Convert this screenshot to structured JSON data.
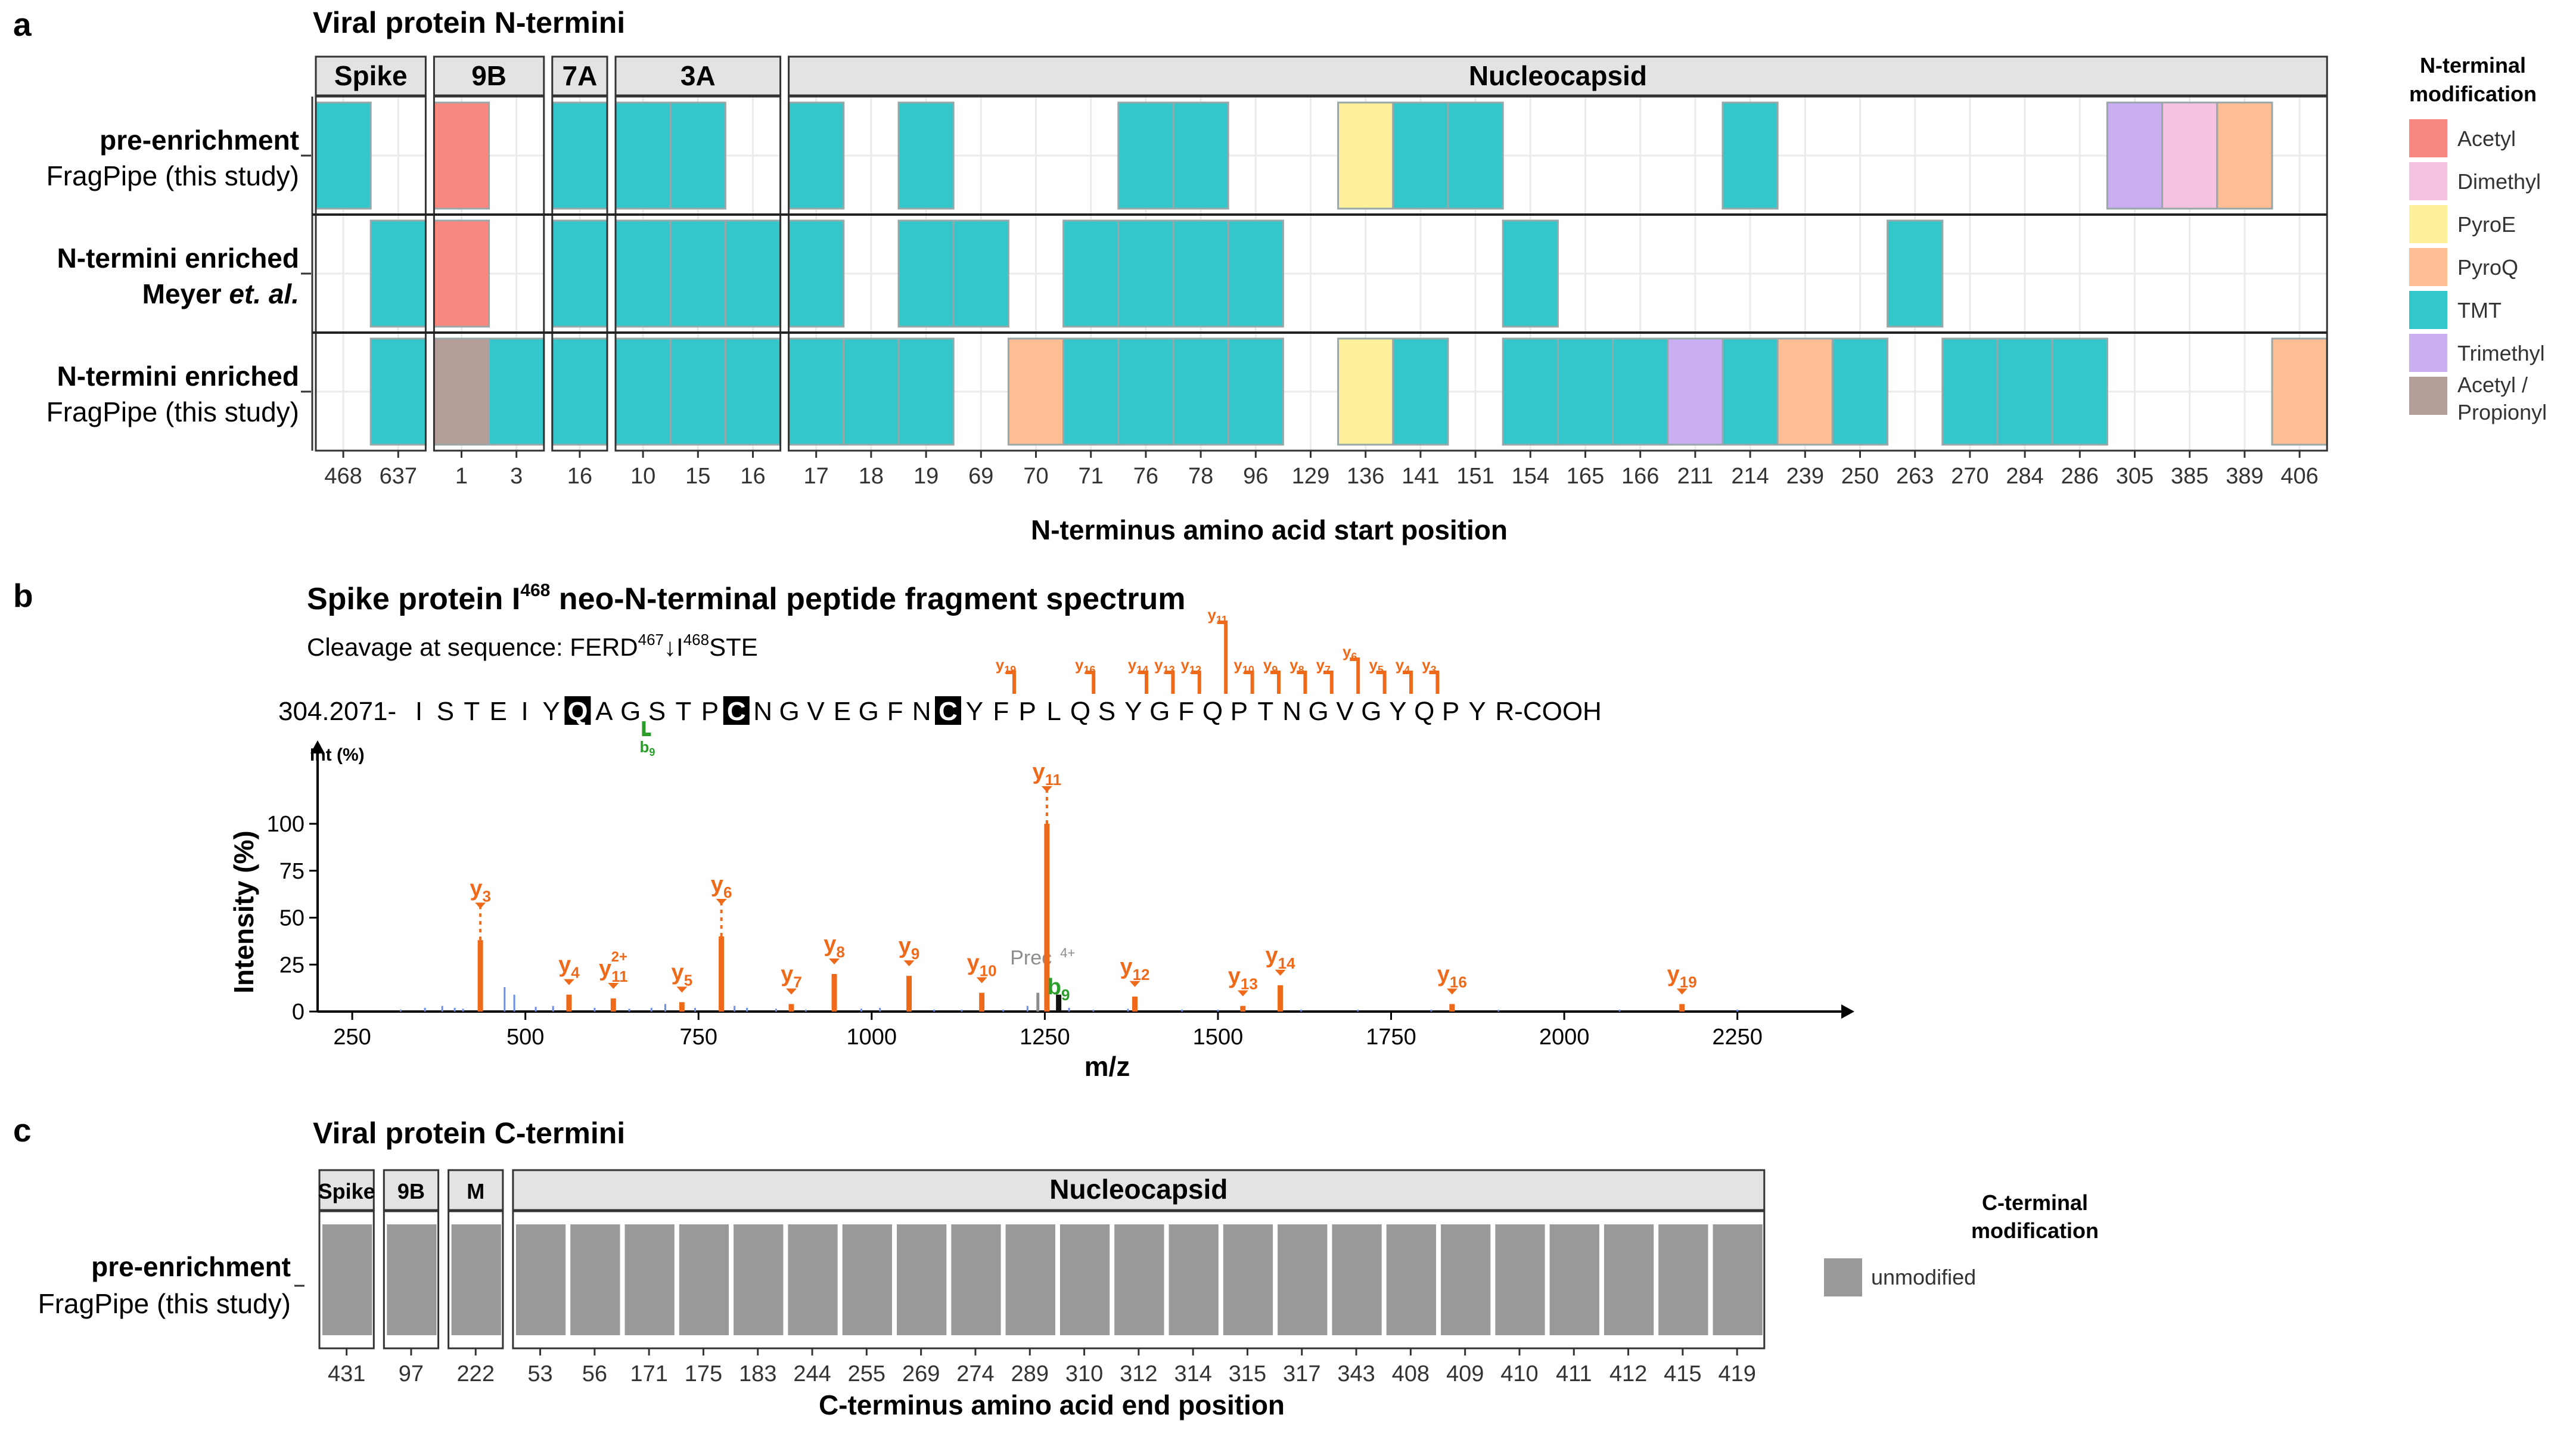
{
  "colors": {
    "Acetyl": "#F8877F",
    "Dimethyl": "#F5C3E2",
    "PyroE": "#FDF09A",
    "PyroQ": "#FDBE93",
    "TMT": "#33C7CC",
    "Trimethyl": "#C9AEF1",
    "Acetyl / Propionyl": "#B59E9A",
    "unmodified": "#999999",
    "y_ion": "#EE6A1A",
    "b_ion": "#2A9D2A",
    "noise": "#6B8FE6",
    "precursor": "#8C8C8C",
    "strip_fill": "#E3E3E3",
    "grid": "#EBEBEB"
  },
  "panel_labels": {
    "a": "a",
    "b": "b",
    "c": "c"
  },
  "chart_data": [
    {
      "type": "heatmap",
      "panel": "a",
      "title": "Viral protein N-termini",
      "xlabel": "N-terminus amino acid start position",
      "legend_title": "N-terminal modification",
      "legend": [
        "Acetyl",
        "Dimethyl",
        "PyroE",
        "PyroQ",
        "TMT",
        "Trimethyl",
        "Acetyl / Propionyl"
      ],
      "rows": [
        {
          "label_bold": "pre-enrichment",
          "label_plain": "FragPipe (this study)"
        },
        {
          "label_bold": "N-termini enriched",
          "label_plain": "Meyer",
          "label_italic": "et. al."
        },
        {
          "label_bold": "N-termini enriched",
          "label_plain": "FragPipe (this study)"
        }
      ],
      "facets": [
        {
          "name": "Spike",
          "positions": [
            "468",
            "637"
          ]
        },
        {
          "name": "9B",
          "positions": [
            "1",
            "3"
          ]
        },
        {
          "name": "7A",
          "positions": [
            "16"
          ]
        },
        {
          "name": "3A",
          "positions": [
            "10",
            "15",
            "16"
          ]
        },
        {
          "name": "Nucleocapsid",
          "positions": [
            "17",
            "18",
            "19",
            "69",
            "70",
            "71",
            "76",
            "78",
            "96",
            "129",
            "136",
            "141",
            "151",
            "154",
            "165",
            "166",
            "211",
            "214",
            "239",
            "250",
            "263",
            "270",
            "284",
            "286",
            "305",
            "385",
            "389",
            "406"
          ]
        }
      ],
      "cells": [
        [
          "Spike",
          "468",
          0,
          "TMT"
        ],
        [
          "Spike",
          "637",
          1,
          "TMT"
        ],
        [
          "Spike",
          "637",
          2,
          "TMT"
        ],
        [
          "9B",
          "1",
          0,
          "Acetyl"
        ],
        [
          "9B",
          "1",
          1,
          "Acetyl"
        ],
        [
          "9B",
          "1",
          2,
          "Acetyl / Propionyl"
        ],
        [
          "9B",
          "3",
          2,
          "TMT"
        ],
        [
          "7A",
          "16",
          0,
          "TMT"
        ],
        [
          "7A",
          "16",
          1,
          "TMT"
        ],
        [
          "7A",
          "16",
          2,
          "TMT"
        ],
        [
          "3A",
          "10",
          0,
          "TMT"
        ],
        [
          "3A",
          "10",
          1,
          "TMT"
        ],
        [
          "3A",
          "10",
          2,
          "TMT"
        ],
        [
          "3A",
          "15",
          0,
          "TMT"
        ],
        [
          "3A",
          "15",
          1,
          "TMT"
        ],
        [
          "3A",
          "15",
          2,
          "TMT"
        ],
        [
          "3A",
          "16",
          1,
          "TMT"
        ],
        [
          "3A",
          "16",
          2,
          "TMT"
        ],
        [
          "Nucleocapsid",
          "17",
          0,
          "TMT"
        ],
        [
          "Nucleocapsid",
          "17",
          1,
          "TMT"
        ],
        [
          "Nucleocapsid",
          "17",
          2,
          "TMT"
        ],
        [
          "Nucleocapsid",
          "18",
          2,
          "TMT"
        ],
        [
          "Nucleocapsid",
          "19",
          0,
          "TMT"
        ],
        [
          "Nucleocapsid",
          "19",
          1,
          "TMT"
        ],
        [
          "Nucleocapsid",
          "19",
          2,
          "TMT"
        ],
        [
          "Nucleocapsid",
          "69",
          1,
          "TMT"
        ],
        [
          "Nucleocapsid",
          "70",
          2,
          "PyroQ"
        ],
        [
          "Nucleocapsid",
          "71",
          1,
          "TMT"
        ],
        [
          "Nucleocapsid",
          "71",
          2,
          "TMT"
        ],
        [
          "Nucleocapsid",
          "76",
          0,
          "TMT"
        ],
        [
          "Nucleocapsid",
          "76",
          1,
          "TMT"
        ],
        [
          "Nucleocapsid",
          "76",
          2,
          "TMT"
        ],
        [
          "Nucleocapsid",
          "78",
          0,
          "TMT"
        ],
        [
          "Nucleocapsid",
          "78",
          1,
          "TMT"
        ],
        [
          "Nucleocapsid",
          "78",
          2,
          "TMT"
        ],
        [
          "Nucleocapsid",
          "96",
          1,
          "TMT"
        ],
        [
          "Nucleocapsid",
          "96",
          2,
          "TMT"
        ],
        [
          "Nucleocapsid",
          "136",
          0,
          "PyroE"
        ],
        [
          "Nucleocapsid",
          "136",
          2,
          "PyroE"
        ],
        [
          "Nucleocapsid",
          "141",
          0,
          "TMT"
        ],
        [
          "Nucleocapsid",
          "141",
          2,
          "TMT"
        ],
        [
          "Nucleocapsid",
          "151",
          0,
          "TMT"
        ],
        [
          "Nucleocapsid",
          "154",
          1,
          "TMT"
        ],
        [
          "Nucleocapsid",
          "154",
          2,
          "TMT"
        ],
        [
          "Nucleocapsid",
          "165",
          2,
          "TMT"
        ],
        [
          "Nucleocapsid",
          "166",
          2,
          "TMT"
        ],
        [
          "Nucleocapsid",
          "211",
          2,
          "Trimethyl"
        ],
        [
          "Nucleocapsid",
          "214",
          0,
          "TMT"
        ],
        [
          "Nucleocapsid",
          "214",
          2,
          "TMT"
        ],
        [
          "Nucleocapsid",
          "239",
          2,
          "PyroQ"
        ],
        [
          "Nucleocapsid",
          "250",
          2,
          "TMT"
        ],
        [
          "Nucleocapsid",
          "263",
          1,
          "TMT"
        ],
        [
          "Nucleocapsid",
          "270",
          2,
          "TMT"
        ],
        [
          "Nucleocapsid",
          "284",
          2,
          "TMT"
        ],
        [
          "Nucleocapsid",
          "286",
          2,
          "TMT"
        ],
        [
          "Nucleocapsid",
          "305",
          0,
          "Trimethyl"
        ],
        [
          "Nucleocapsid",
          "385",
          0,
          "Dimethyl"
        ],
        [
          "Nucleocapsid",
          "389",
          0,
          "PyroQ"
        ],
        [
          "Nucleocapsid",
          "406",
          2,
          "PyroQ"
        ]
      ]
    },
    {
      "type": "bar",
      "panel": "b",
      "title_parts": [
        "Spike protein I",
        "468",
        " neo-N-terminal peptide fragment spectrum"
      ],
      "subtitle_parts": [
        "Cleavage at sequence: FERD",
        "467",
        "↓I",
        "468",
        "STE"
      ],
      "sequence_prefix": "304.2071-",
      "sequence": "ISTEIYQAGSTPCNGVEGFNCYFPLQSYGFQPTNGVGYQPYR",
      "sequence_boxed_indices": [
        6,
        12,
        20
      ],
      "sequence_suffix": "R-COOH",
      "seq_y_ions": [
        3,
        4,
        5,
        6,
        7,
        8,
        9,
        10,
        11,
        12,
        13,
        14,
        16,
        19
      ],
      "seq_b_ions": [
        9
      ],
      "ylabel": "Intensity (%)",
      "xlabel": "m/z",
      "int_label": "Int (%)",
      "xlim": [
        200,
        2400
      ],
      "ylim": [
        0,
        110
      ],
      "xticks": [
        250,
        500,
        750,
        1000,
        1250,
        1500,
        1750,
        2000,
        2250
      ],
      "yticks": [
        0,
        25,
        50,
        75,
        100
      ],
      "peaks": [
        {
          "ion": "y",
          "n": "3",
          "charge": "",
          "mz": 435,
          "intensity": 38
        },
        {
          "ion": "y",
          "n": "4",
          "charge": "",
          "mz": 563,
          "intensity": 9
        },
        {
          "ion": "y",
          "n": "11",
          "charge": "2+",
          "mz": 627,
          "intensity": 7
        },
        {
          "ion": "y",
          "n": "5",
          "charge": "",
          "mz": 726,
          "intensity": 5
        },
        {
          "ion": "y",
          "n": "6",
          "charge": "",
          "mz": 783,
          "intensity": 40
        },
        {
          "ion": "y",
          "n": "7",
          "charge": "",
          "mz": 884,
          "intensity": 4
        },
        {
          "ion": "y",
          "n": "8",
          "charge": "",
          "mz": 946,
          "intensity": 20
        },
        {
          "ion": "y",
          "n": "9",
          "charge": "",
          "mz": 1054,
          "intensity": 19
        },
        {
          "ion": "y",
          "n": "10",
          "charge": "",
          "mz": 1159,
          "intensity": 10
        },
        {
          "ion": "y",
          "n": "11",
          "charge": "",
          "mz": 1253,
          "intensity": 100
        },
        {
          "ion": "b",
          "n": "9",
          "charge": "",
          "mz": 1270,
          "intensity": 9
        },
        {
          "ion": "y",
          "n": "12",
          "charge": "",
          "mz": 1380,
          "intensity": 8
        },
        {
          "ion": "y",
          "n": "13",
          "charge": "",
          "mz": 1536,
          "intensity": 3
        },
        {
          "ion": "y",
          "n": "14",
          "charge": "",
          "mz": 1590,
          "intensity": 14
        },
        {
          "ion": "y",
          "n": "16",
          "charge": "",
          "mz": 1838,
          "intensity": 4
        },
        {
          "ion": "y",
          "n": "19",
          "charge": "",
          "mz": 2170,
          "intensity": 4
        }
      ],
      "precursor": {
        "label": "Prec",
        "charge": "4+",
        "mz": 1240,
        "intensity": 10
      },
      "noise": [
        [
          320,
          1
        ],
        [
          355,
          2
        ],
        [
          380,
          3
        ],
        [
          398,
          2
        ],
        [
          410,
          1.5
        ],
        [
          470,
          13
        ],
        [
          484,
          9
        ],
        [
          515,
          2.5
        ],
        [
          540,
          3
        ],
        [
          600,
          2
        ],
        [
          650,
          1.5
        ],
        [
          682,
          2
        ],
        [
          702,
          4
        ],
        [
          745,
          2
        ],
        [
          802,
          3
        ],
        [
          820,
          2
        ],
        [
          862,
          1.5
        ],
        [
          905,
          1
        ],
        [
          985,
          1.5
        ],
        [
          1012,
          2
        ],
        [
          1090,
          1
        ],
        [
          1130,
          1
        ],
        [
          1190,
          1
        ],
        [
          1225,
          3
        ],
        [
          1285,
          2
        ],
        [
          1320,
          1
        ],
        [
          1370,
          1.5
        ],
        [
          1448,
          1
        ],
        [
          1500,
          1
        ],
        [
          1620,
          1
        ],
        [
          1702,
          1
        ],
        [
          1808,
          1
        ],
        [
          1905,
          1
        ],
        [
          2080,
          1
        ],
        [
          2250,
          1
        ]
      ]
    },
    {
      "type": "heatmap",
      "panel": "c",
      "title": "Viral protein C-termini",
      "xlabel": "C-terminus amino acid end position",
      "legend_title": "C-terminal modification",
      "legend": [
        "unmodified"
      ],
      "rows": [
        {
          "label_bold": "pre-enrichment",
          "label_plain": "FragPipe (this study)"
        }
      ],
      "facets": [
        {
          "name": "Spike",
          "positions": [
            "431"
          ]
        },
        {
          "name": "9B",
          "positions": [
            "97"
          ]
        },
        {
          "name": "M",
          "positions": [
            "222"
          ]
        },
        {
          "name": "Nucleocapsid",
          "positions": [
            "53",
            "56",
            "171",
            "175",
            "183",
            "244",
            "255",
            "269",
            "274",
            "289",
            "310",
            "312",
            "314",
            "315",
            "317",
            "343",
            "408",
            "409",
            "410",
            "411",
            "412",
            "415",
            "419"
          ]
        }
      ],
      "value": "unmodified"
    }
  ]
}
